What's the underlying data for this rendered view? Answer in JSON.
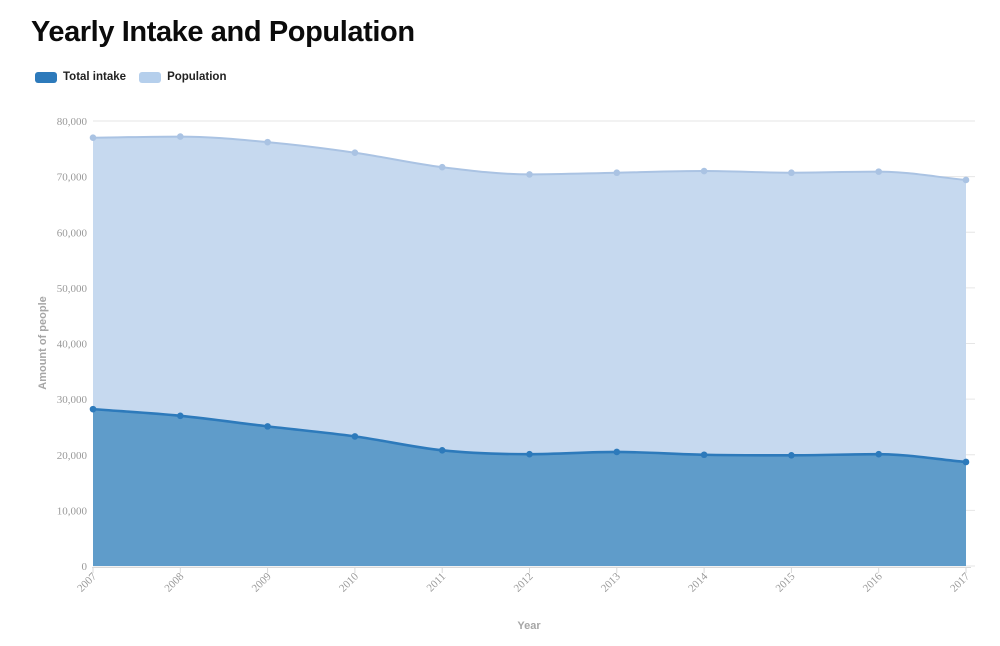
{
  "title": "Yearly Intake and Population",
  "chart_data": {
    "type": "area",
    "stacked": false,
    "title": "Yearly Intake and Population",
    "xlabel": "Year",
    "ylabel": "Amount of people",
    "x": [
      2007,
      2008,
      2009,
      2010,
      2011,
      2012,
      2013,
      2014,
      2015,
      2016,
      2017
    ],
    "series": [
      {
        "name": "Total intake",
        "values": [
          28200,
          27000,
          25100,
          23300,
          20800,
          20100,
          20500,
          20000,
          19900,
          20100,
          18700
        ],
        "line_color": "#2d7abb",
        "fill_color": "#5f9cca",
        "legend_color": "#2d7abb"
      },
      {
        "name": "Population",
        "values": [
          77000,
          77200,
          76200,
          74300,
          71700,
          70400,
          70700,
          71000,
          70700,
          70900,
          69400
        ],
        "line_color": "#aac3e3",
        "fill_color": "#c6d9ef",
        "legend_color": "#b5cfec"
      }
    ],
    "ylim": [
      0,
      80000
    ],
    "ytick_step": 10000,
    "grid": true,
    "legend_position": "top-left",
    "styles": {
      "grid_color": "#e6e6e6",
      "axis_line_color": "#d9d9d9",
      "tick_label_color": "#999999",
      "axis_title_color": "#a6a6a6",
      "title_color": "#0b0b0b",
      "legend_text_color": "#222222",
      "background": "#ffffff"
    }
  }
}
